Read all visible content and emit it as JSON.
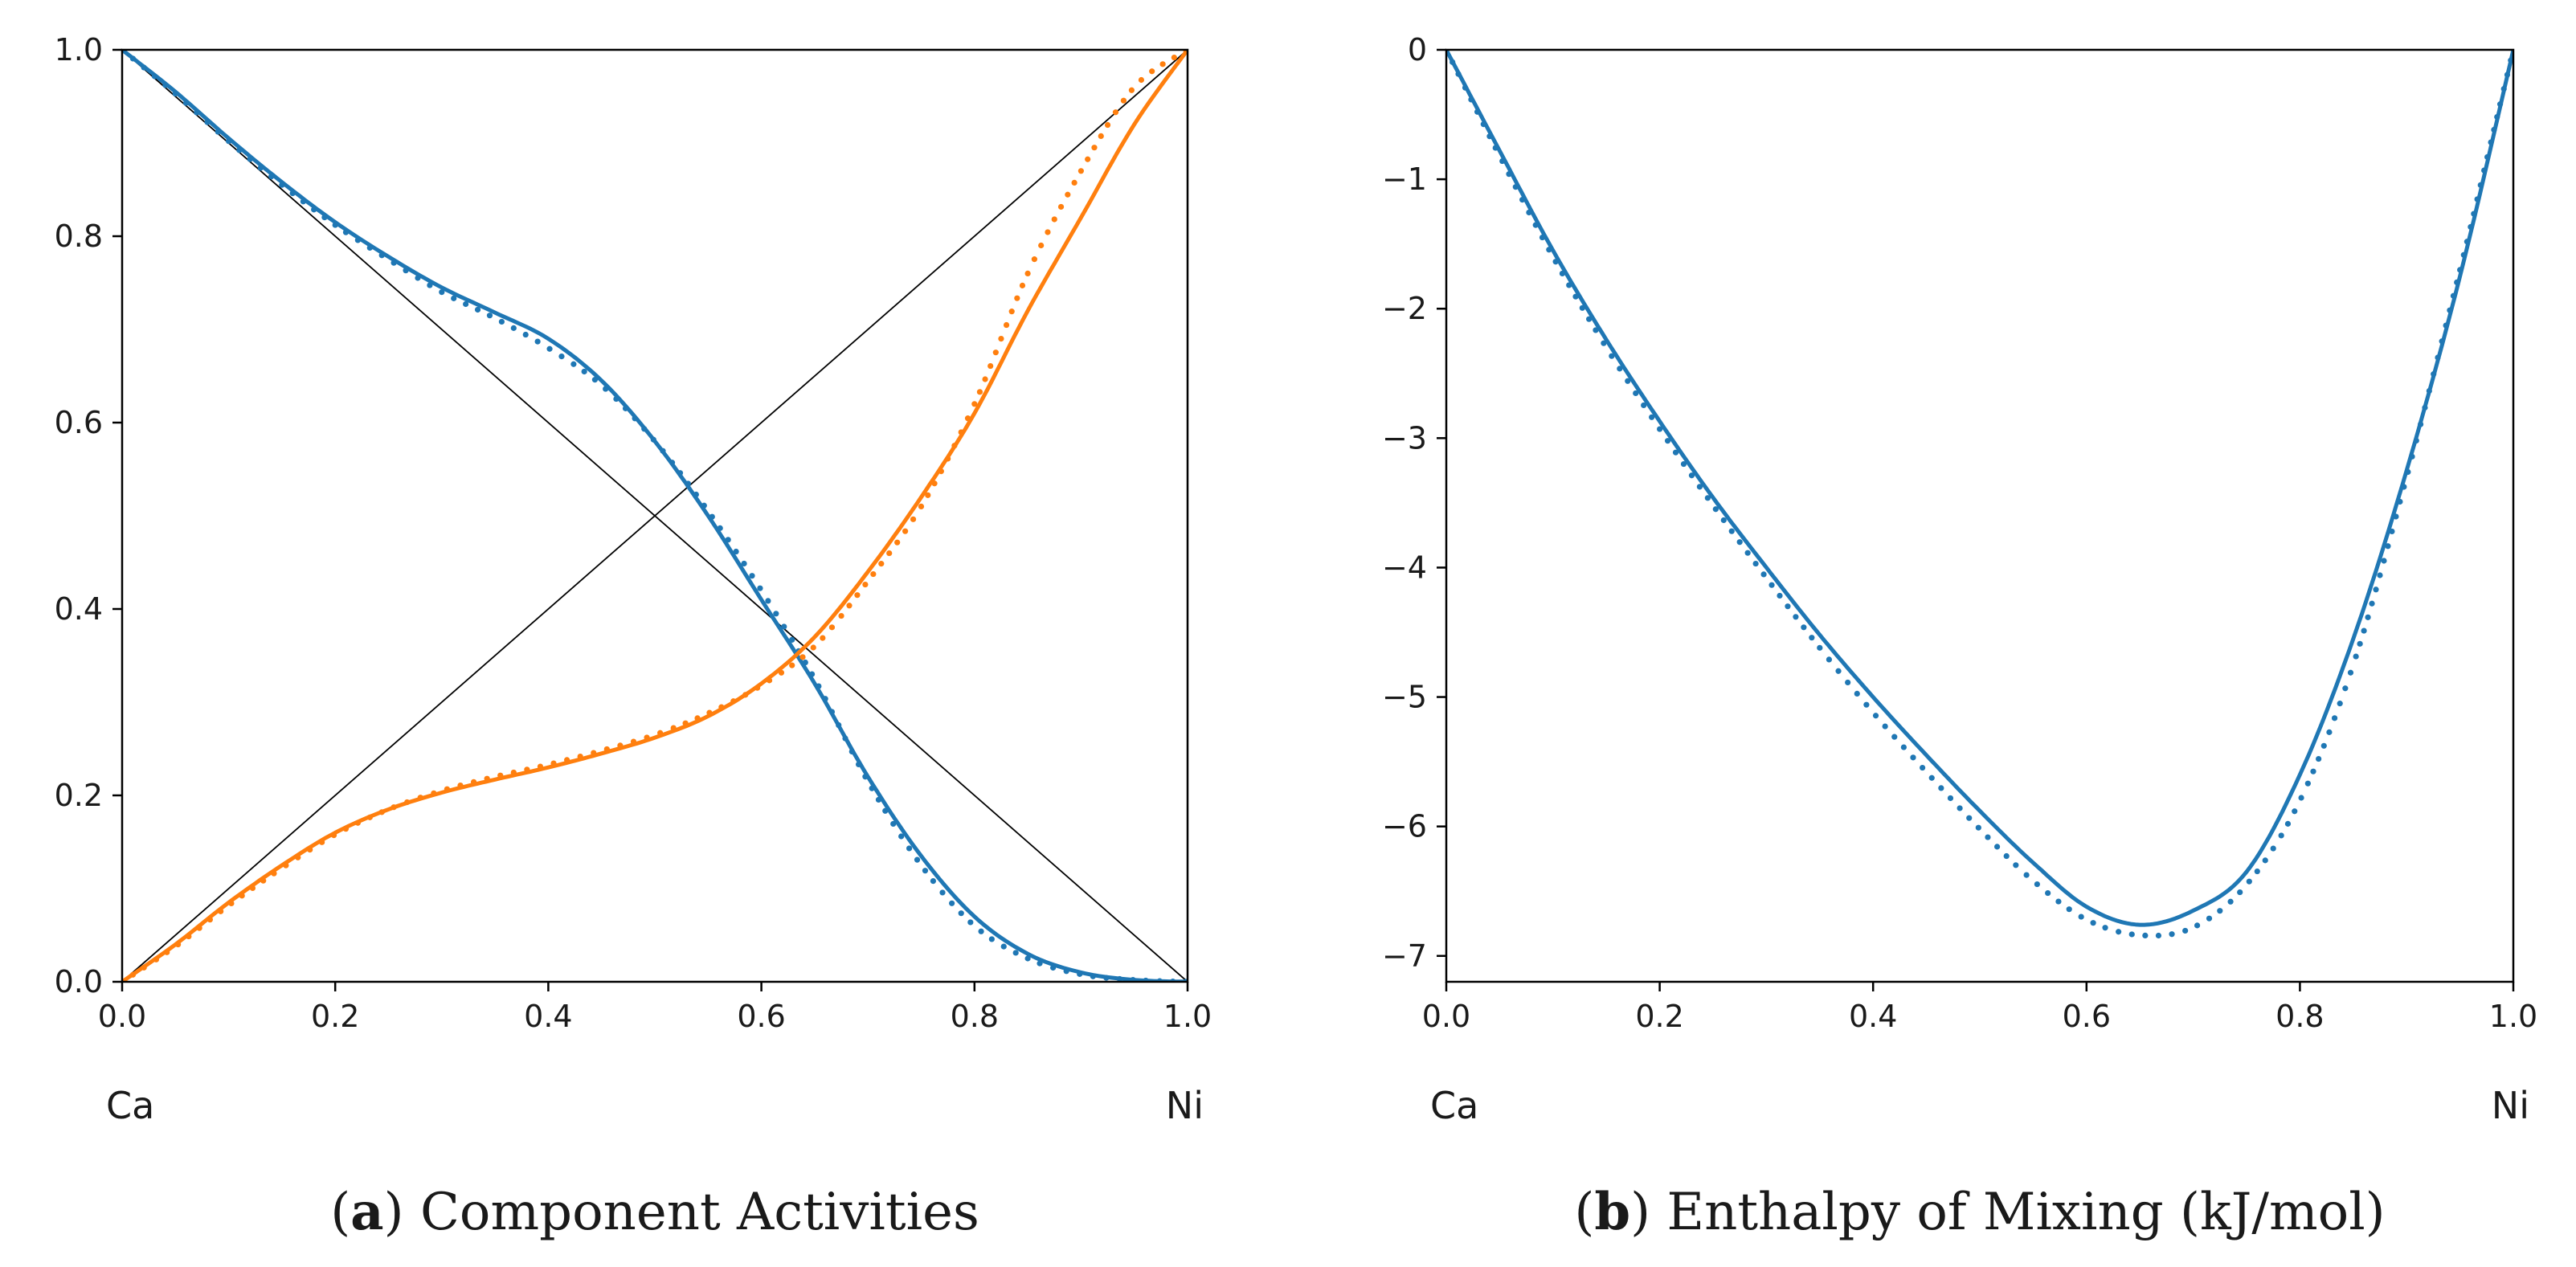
{
  "chart_data": [
    {
      "type": "line",
      "title": "",
      "caption": {
        "letter": "a",
        "text": "Component Activities"
      },
      "xlabel": "",
      "ylabel": "",
      "xlim": [
        0,
        1
      ],
      "ylim": [
        0,
        1
      ],
      "xticks": [
        "0.0",
        "0.2",
        "0.4",
        "0.6",
        "0.8",
        "1.0"
      ],
      "yticks": [
        "0.0",
        "0.2",
        "0.4",
        "0.6",
        "0.8",
        "1.0"
      ],
      "end_labels": {
        "left": "Ca",
        "right": "Ni"
      },
      "reference_lines": [
        {
          "name": "raoult-ca",
          "x": [
            0,
            1
          ],
          "y": [
            1,
            0
          ],
          "color": "#000000"
        },
        {
          "name": "raoult-ni",
          "x": [
            0,
            1
          ],
          "y": [
            0,
            1
          ],
          "color": "#000000"
        }
      ],
      "series": [
        {
          "name": "activity-ca-model",
          "style": "solid",
          "color": "#1f77b4",
          "x": [
            0,
            0.05,
            0.1,
            0.15,
            0.2,
            0.25,
            0.3,
            0.35,
            0.4,
            0.45,
            0.5,
            0.55,
            0.6,
            0.65,
            0.7,
            0.75,
            0.8,
            0.85,
            0.9,
            0.95,
            1.0
          ],
          "y": [
            1.0,
            0.955,
            0.905,
            0.858,
            0.815,
            0.778,
            0.745,
            0.718,
            0.69,
            0.645,
            0.58,
            0.5,
            0.41,
            0.32,
            0.22,
            0.135,
            0.07,
            0.03,
            0.01,
            0.002,
            0.0
          ]
        },
        {
          "name": "activity-ca-data",
          "style": "dotted",
          "color": "#1f77b4",
          "x": [
            0,
            0.05,
            0.1,
            0.15,
            0.2,
            0.25,
            0.3,
            0.35,
            0.4,
            0.45,
            0.5,
            0.55,
            0.6,
            0.65,
            0.7,
            0.75,
            0.8,
            0.85,
            0.9,
            0.95,
            1.0
          ],
          "y": [
            1.0,
            0.953,
            0.902,
            0.855,
            0.812,
            0.775,
            0.74,
            0.712,
            0.68,
            0.64,
            0.58,
            0.505,
            0.42,
            0.325,
            0.215,
            0.125,
            0.06,
            0.025,
            0.008,
            0.002,
            0.0
          ]
        },
        {
          "name": "activity-ni-model",
          "style": "solid",
          "color": "#ff7f0e",
          "x": [
            0,
            0.05,
            0.1,
            0.15,
            0.2,
            0.25,
            0.3,
            0.35,
            0.4,
            0.45,
            0.5,
            0.55,
            0.6,
            0.65,
            0.7,
            0.75,
            0.8,
            0.85,
            0.9,
            0.95,
            1.0
          ],
          "y": [
            0.0,
            0.04,
            0.085,
            0.125,
            0.16,
            0.185,
            0.203,
            0.217,
            0.23,
            0.245,
            0.262,
            0.285,
            0.32,
            0.37,
            0.44,
            0.52,
            0.61,
            0.72,
            0.82,
            0.92,
            1.0
          ]
        },
        {
          "name": "activity-ni-data",
          "style": "dotted",
          "color": "#ff7f0e",
          "x": [
            0,
            0.05,
            0.1,
            0.15,
            0.2,
            0.25,
            0.3,
            0.35,
            0.4,
            0.45,
            0.5,
            0.55,
            0.6,
            0.65,
            0.7,
            0.75,
            0.8,
            0.85,
            0.9,
            0.95,
            1.0
          ],
          "y": [
            0.0,
            0.038,
            0.082,
            0.122,
            0.158,
            0.185,
            0.205,
            0.22,
            0.233,
            0.248,
            0.265,
            0.288,
            0.318,
            0.36,
            0.43,
            0.51,
            0.62,
            0.76,
            0.87,
            0.96,
            1.0
          ]
        }
      ]
    },
    {
      "type": "line",
      "title": "",
      "caption": {
        "letter": "b",
        "text": "Enthalpy of Mixing (kJ/mol)"
      },
      "xlabel": "",
      "ylabel": "",
      "xlim": [
        0,
        1
      ],
      "ylim": [
        -7.2,
        0
      ],
      "xticks": [
        "0.0",
        "0.2",
        "0.4",
        "0.6",
        "0.8",
        "1.0"
      ],
      "yticks": [
        "0",
        "−1",
        "−2",
        "−3",
        "−4",
        "−5",
        "−6",
        "−7"
      ],
      "end_labels": {
        "left": "Ca",
        "right": "Ni"
      },
      "series": [
        {
          "name": "enthalpy-model",
          "style": "solid",
          "color": "#1f77b4",
          "x": [
            0,
            0.05,
            0.1,
            0.15,
            0.2,
            0.25,
            0.3,
            0.35,
            0.4,
            0.45,
            0.5,
            0.55,
            0.6,
            0.65,
            0.7,
            0.75,
            0.8,
            0.85,
            0.9,
            0.95,
            1.0
          ],
          "y": [
            0,
            -0.78,
            -1.55,
            -2.24,
            -2.87,
            -3.46,
            -4.0,
            -4.52,
            -5.0,
            -5.45,
            -5.88,
            -6.28,
            -6.62,
            -6.76,
            -6.65,
            -6.35,
            -5.6,
            -4.55,
            -3.25,
            -1.75,
            0
          ]
        },
        {
          "name": "enthalpy-data",
          "style": "dotted",
          "color": "#1f77b4",
          "x": [
            0,
            0.05,
            0.1,
            0.15,
            0.2,
            0.25,
            0.3,
            0.35,
            0.4,
            0.45,
            0.5,
            0.55,
            0.6,
            0.65,
            0.7,
            0.75,
            0.8,
            0.85,
            0.9,
            0.95,
            0.975,
            1.0
          ],
          "y": [
            0,
            -0.82,
            -1.6,
            -2.3,
            -2.93,
            -3.52,
            -4.08,
            -4.62,
            -5.12,
            -5.58,
            -6.02,
            -6.42,
            -6.72,
            -6.84,
            -6.78,
            -6.45,
            -5.8,
            -4.75,
            -3.3,
            -1.7,
            -0.85,
            0
          ]
        }
      ]
    }
  ]
}
